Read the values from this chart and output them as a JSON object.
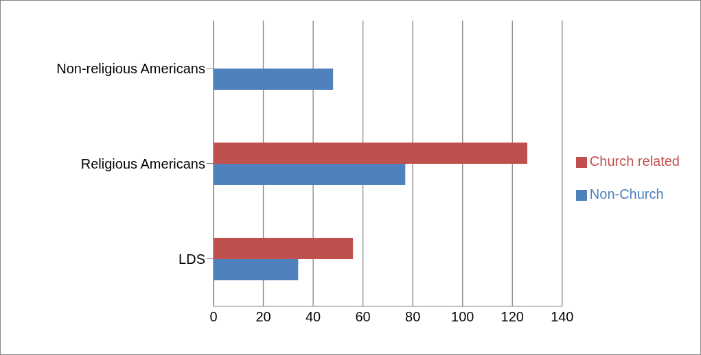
{
  "chart_data": {
    "type": "bar",
    "orientation": "horizontal",
    "categories": [
      "Non-religious Americans",
      "Religious Americans",
      "LDS"
    ],
    "series": [
      {
        "name": "Church related",
        "color": "#c0504d",
        "values": [
          null,
          126,
          56
        ]
      },
      {
        "name": "Non-Church",
        "color": "#4f81bd",
        "values": [
          48,
          77,
          34
        ]
      }
    ],
    "xlim": [
      0,
      140
    ],
    "xticks": [
      0,
      20,
      40,
      60,
      80,
      100,
      120,
      140
    ],
    "grid": "x",
    "legend": "right"
  }
}
